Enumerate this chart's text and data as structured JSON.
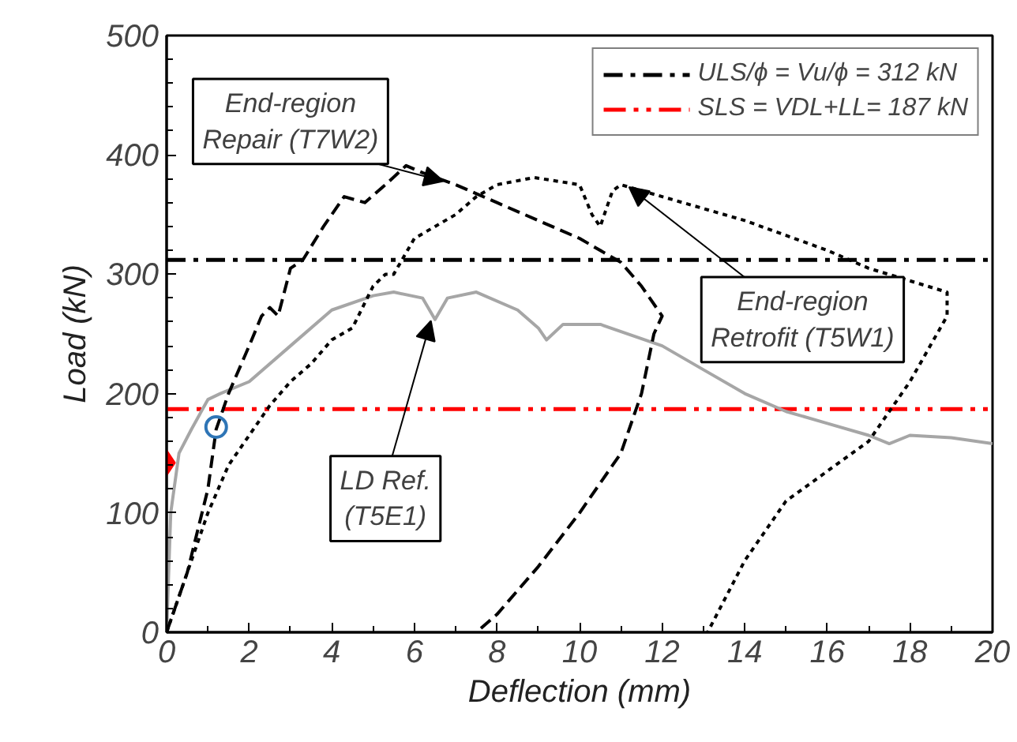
{
  "chart_data": {
    "type": "line",
    "xlabel": "Deflection (mm)",
    "ylabel": "Load (kN)",
    "xlim": [
      0,
      20
    ],
    "ylim": [
      0,
      500
    ],
    "xticks": [
      0,
      2,
      4,
      6,
      8,
      10,
      12,
      14,
      16,
      18,
      20
    ],
    "yticks": [
      0,
      100,
      200,
      300,
      400,
      500
    ],
    "grid": false,
    "legend": "top right",
    "series": [
      {
        "color": "#a6a6a6",
        "line_style": "solid",
        "x": [
          0,
          0.1,
          0.3,
          0.6,
          1,
          1.3,
          2,
          3,
          4,
          5,
          5.5,
          6.2,
          6.5,
          6.8,
          7.5,
          8.5,
          9,
          9.2,
          9.6,
          10.5,
          12,
          13,
          14,
          15,
          16,
          17,
          17.5,
          18,
          19,
          20
        ],
        "values": [
          0,
          100,
          150,
          170,
          195,
          200,
          210,
          240,
          270,
          282,
          285,
          280,
          262,
          280,
          285,
          270,
          255,
          245,
          258,
          258,
          240,
          220,
          200,
          185,
          175,
          165,
          158,
          165,
          163,
          158
        ]
      },
      {
        "color": "#000000",
        "line_style": "dashed",
        "x": [
          0,
          0.5,
          1,
          1.2,
          1.5,
          2,
          2.3,
          2.5,
          2.7,
          3,
          3.3,
          3.8,
          4.3,
          4.8,
          5.3,
          5.8,
          6.2,
          7,
          8,
          9,
          10,
          11,
          11.5,
          12,
          11.8,
          11.5,
          11,
          10,
          9,
          8,
          7.5
        ],
        "values": [
          0,
          50,
          120,
          170,
          200,
          240,
          265,
          272,
          265,
          305,
          312,
          340,
          365,
          360,
          375,
          391,
          385,
          375,
          360,
          345,
          330,
          310,
          290,
          265,
          250,
          200,
          150,
          100,
          55,
          15,
          0
        ]
      },
      {
        "color": "#000000",
        "line_style": "dotted",
        "x": [
          0,
          0.5,
          1,
          1.5,
          2,
          2.5,
          3,
          3.5,
          4,
          4.5,
          5,
          5.3,
          5.5,
          6,
          6.5,
          7,
          7.5,
          8,
          8.9,
          10,
          10.3,
          10.5,
          10.8,
          11,
          12,
          14,
          16,
          17,
          18.9,
          18.9,
          18,
          17,
          16,
          15,
          14,
          13.1
        ],
        "values": [
          0,
          50,
          100,
          140,
          165,
          190,
          210,
          225,
          245,
          255,
          290,
          300,
          300,
          330,
          340,
          350,
          365,
          375,
          381,
          375,
          350,
          340,
          370,
          375,
          365,
          345,
          320,
          305,
          285,
          265,
          210,
          160,
          135,
          110,
          60,
          0
        ]
      },
      {
        "type": "scatter",
        "marker": "diamond",
        "color": "#ff0000",
        "x": [
          0
        ],
        "values": [
          142
        ]
      },
      {
        "type": "scatter",
        "marker": "circle",
        "color": "#2e75b6",
        "x": [
          1.2
        ],
        "values": [
          172
        ]
      }
    ],
    "ref_lines": [
      {
        "axis": "y",
        "value": 312,
        "label": "ULS/ϕ = Vu/ϕ = 312 kN",
        "color": "#000000",
        "line_style": "dashdot"
      },
      {
        "axis": "y",
        "value": 187,
        "label": "SLS = VDL+LL= 187 kN",
        "color": "#ff0000",
        "line_style": "dashdotdot"
      }
    ],
    "annotations": [
      {
        "text": "End-region\nRepair (T7W2)",
        "x": 6.7,
        "y": 378
      },
      {
        "text": "LD Ref.\n(T5E1)",
        "x": 6.4,
        "y": 261
      },
      {
        "text": "End-region\nRetrofit (T5W1)",
        "x": 11.2,
        "y": 373
      }
    ]
  }
}
